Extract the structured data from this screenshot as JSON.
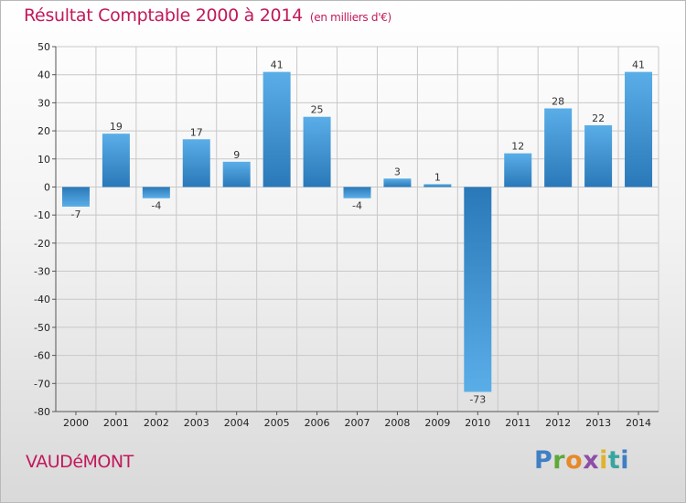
{
  "header": {
    "title": "Résultat Comptable 2000 à 2014",
    "unit": "(en milliers d'€)"
  },
  "footer": {
    "town": "VAUDéMONT",
    "brand": "Proxiti"
  },
  "colors": {
    "title": "#c2185b",
    "bar_light": "#5aaee8",
    "bar_dark": "#2a78b8",
    "grid": "#c8c8c8"
  },
  "chart_data": {
    "type": "bar",
    "title": "Résultat Comptable 2000 à 2014",
    "ylabel": "(en milliers d'€)",
    "xlabel": "",
    "categories": [
      "2000",
      "2001",
      "2002",
      "2003",
      "2004",
      "2005",
      "2006",
      "2007",
      "2008",
      "2009",
      "2010",
      "2011",
      "2012",
      "2013",
      "2014"
    ],
    "values": [
      -7,
      19,
      -4,
      17,
      9,
      41,
      25,
      -4,
      3,
      1,
      -73,
      12,
      28,
      22,
      41
    ],
    "ylim": [
      -80,
      50
    ],
    "yticks": [
      50,
      40,
      30,
      20,
      10,
      0,
      -10,
      -20,
      -30,
      -40,
      -50,
      -60,
      -70,
      -80
    ],
    "grid": true
  }
}
